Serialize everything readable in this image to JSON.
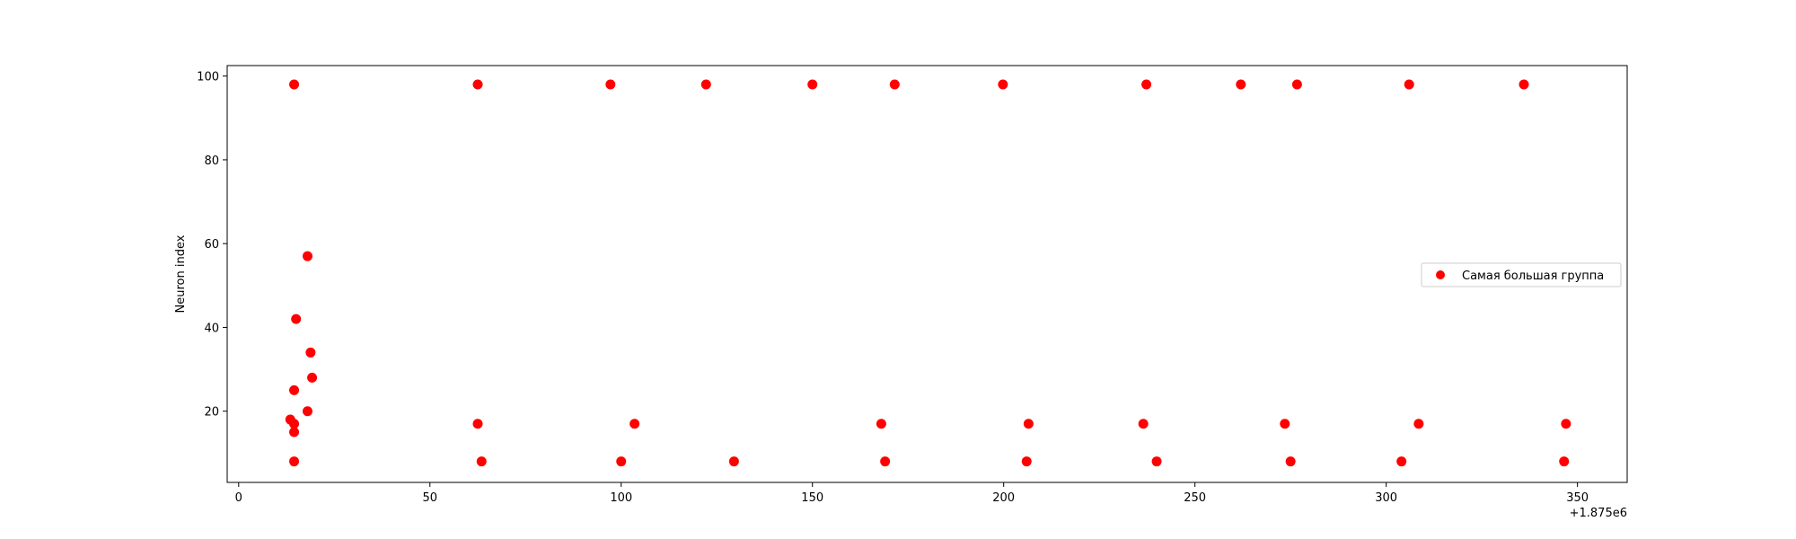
{
  "chart_data": {
    "type": "scatter",
    "title": "",
    "xlabel": "",
    "ylabel": "Neuron index",
    "x_offset_label": "+1.875e6",
    "xlim": [
      -3,
      363
    ],
    "ylim": [
      3,
      102.5
    ],
    "xticks": [
      0,
      50,
      100,
      150,
      200,
      250,
      300,
      350
    ],
    "yticks": [
      20,
      40,
      60,
      80,
      100
    ],
    "grid": false,
    "legend": {
      "placement": "center-right",
      "entries": [
        "Самая большая группа"
      ]
    },
    "series": [
      {
        "name": "Самая большая группа",
        "color": "#ff0000",
        "points": [
          [
            14.5,
            98
          ],
          [
            62.5,
            98
          ],
          [
            97.2,
            98
          ],
          [
            122.2,
            98
          ],
          [
            150,
            98
          ],
          [
            171.5,
            98
          ],
          [
            199.8,
            98
          ],
          [
            237.3,
            98
          ],
          [
            262,
            98
          ],
          [
            276.7,
            98
          ],
          [
            306,
            98
          ],
          [
            336,
            98
          ],
          [
            18,
            57
          ],
          [
            15,
            42
          ],
          [
            18.8,
            34
          ],
          [
            19.2,
            28
          ],
          [
            14.5,
            25
          ],
          [
            18,
            20
          ],
          [
            13.5,
            18
          ],
          [
            14.5,
            17
          ],
          [
            14.5,
            15
          ],
          [
            62.5,
            17
          ],
          [
            103.5,
            17
          ],
          [
            168,
            17
          ],
          [
            206.5,
            17
          ],
          [
            236.5,
            17
          ],
          [
            273.5,
            17
          ],
          [
            308.5,
            17
          ],
          [
            347,
            17
          ],
          [
            14.5,
            8
          ],
          [
            63.5,
            8
          ],
          [
            100,
            8
          ],
          [
            129.5,
            8
          ],
          [
            169,
            8
          ],
          [
            206,
            8
          ],
          [
            240,
            8
          ],
          [
            275,
            8
          ],
          [
            304,
            8
          ],
          [
            346.5,
            8
          ]
        ]
      }
    ]
  }
}
